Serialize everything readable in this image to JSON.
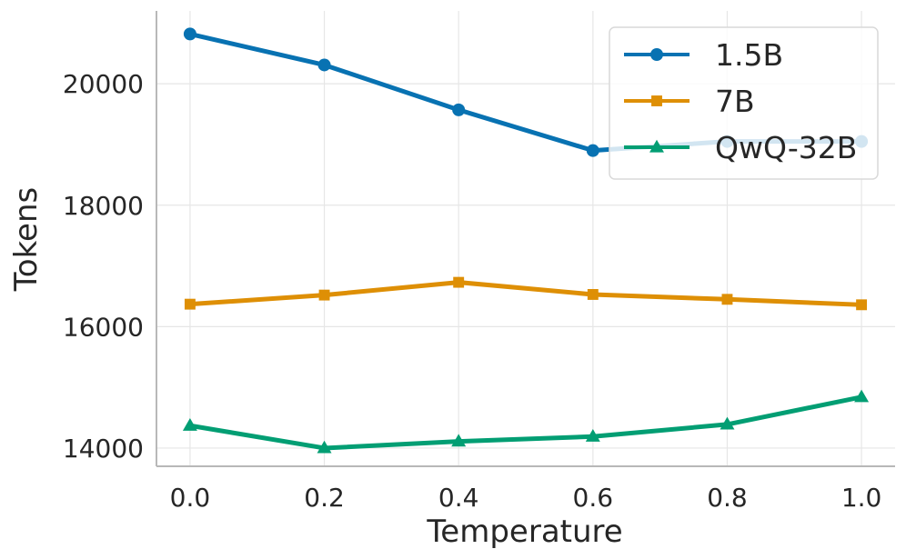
{
  "chart_data": {
    "type": "line",
    "title": "",
    "xlabel": "Temperature",
    "ylabel": "Tokens",
    "x": [
      0.0,
      0.2,
      0.4,
      0.6,
      0.8,
      1.0
    ],
    "xticks": [
      "0.0",
      "0.2",
      "0.4",
      "0.6",
      "0.8",
      "1.0"
    ],
    "yticks": [
      "14000",
      "16000",
      "18000",
      "20000"
    ],
    "ytick_values": [
      14000,
      16000,
      18000,
      20000
    ],
    "xlim": [
      -0.05,
      1.05
    ],
    "ylim": [
      13700,
      21200
    ],
    "grid": true,
    "legend_position": "top-right",
    "series": [
      {
        "name": "1.5B",
        "color": "#0872b2",
        "marker": "circle",
        "values": [
          20820,
          20310,
          19570,
          18900,
          19050,
          19050
        ]
      },
      {
        "name": "7B",
        "color": "#de8f05",
        "marker": "square",
        "values": [
          16370,
          16520,
          16730,
          16530,
          16450,
          16360
        ]
      },
      {
        "name": "QwQ-32B",
        "color": "#029e73",
        "marker": "triangle",
        "values": [
          14370,
          14000,
          14110,
          14190,
          14390,
          14840
        ]
      }
    ]
  }
}
